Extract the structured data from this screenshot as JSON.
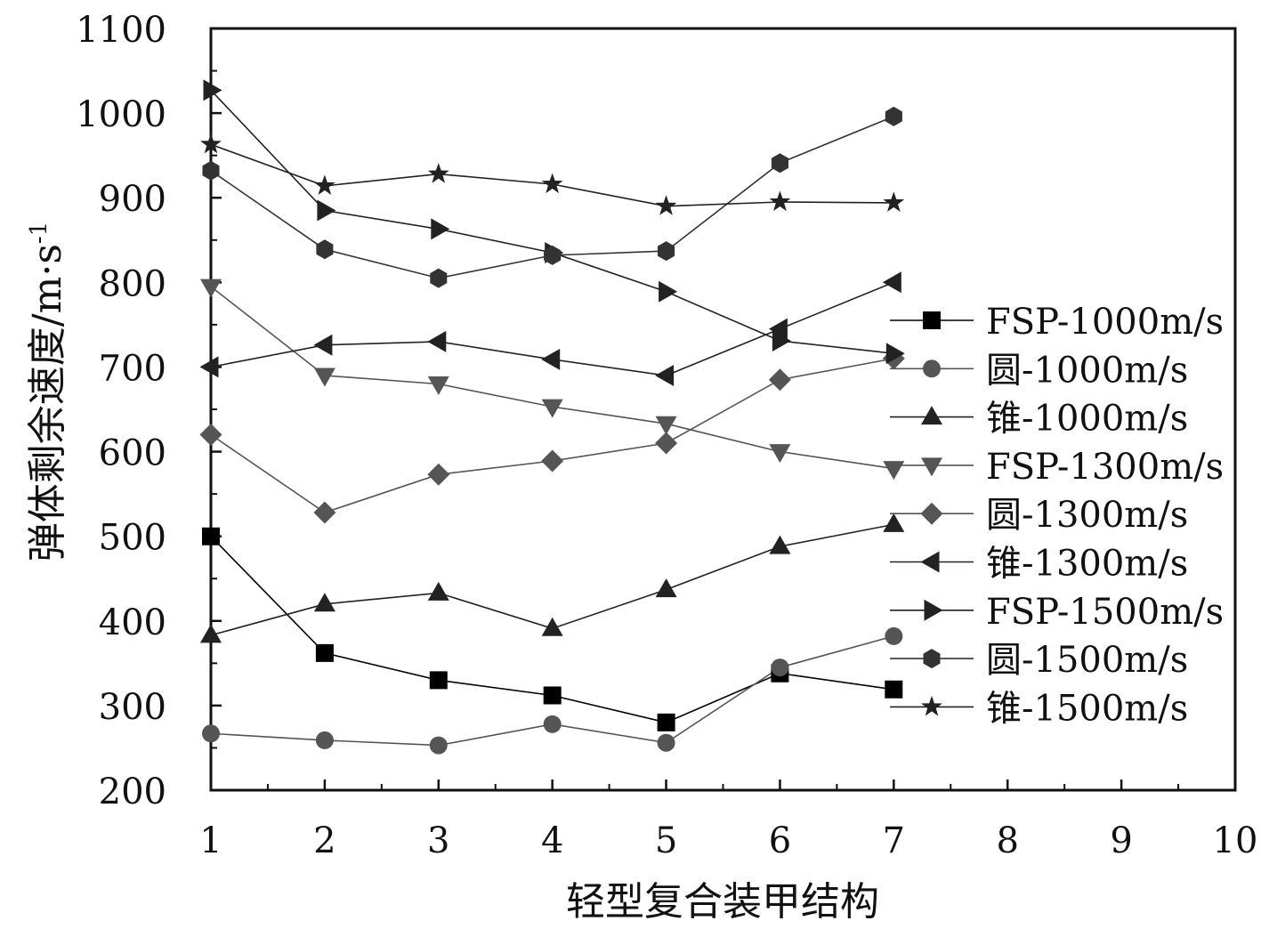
{
  "chart_data": {
    "type": "line",
    "title": "",
    "xlabel": "轻型复合装甲结构",
    "ylabel": "弹体剩余速度/m·s",
    "ylabel_superscript": "-1",
    "xlim": [
      1,
      10
    ],
    "ylim": [
      200,
      1100
    ],
    "xticks": [
      "1",
      "2",
      "3",
      "4",
      "5",
      "6",
      "7",
      "8",
      "9",
      "10"
    ],
    "yticks": [
      "200",
      "300",
      "400",
      "500",
      "600",
      "700",
      "800",
      "900",
      "1000",
      "1100"
    ],
    "grid": false,
    "legend_position": "right",
    "x": [
      1,
      2,
      3,
      4,
      5,
      6,
      7
    ],
    "series": [
      {
        "name": "FSP-1000m/s",
        "marker": "square",
        "color": "#000000",
        "values": [
          500,
          362,
          330,
          312,
          280,
          338,
          319
        ]
      },
      {
        "name": "圆-1000m/s",
        "marker": "circle",
        "color": "#555555",
        "values": [
          267,
          259,
          253,
          278,
          256,
          345,
          382
        ]
      },
      {
        "name": "锥-1000m/s",
        "marker": "triangle-up",
        "color": "#222222",
        "values": [
          383,
          420,
          433,
          391,
          437,
          488,
          514
        ]
      },
      {
        "name": "FSP-1300m/s",
        "marker": "triangle-down",
        "color": "#555555",
        "values": [
          795,
          690,
          680,
          653,
          633,
          600,
          580
        ]
      },
      {
        "name": "圆-1300m/s",
        "marker": "diamond",
        "color": "#555555",
        "values": [
          620,
          528,
          573,
          589,
          610,
          685,
          710
        ]
      },
      {
        "name": "锥-1300m/s",
        "marker": "triangle-left",
        "color": "#222222",
        "values": [
          700,
          726,
          730,
          709,
          690,
          745,
          800
        ]
      },
      {
        "name": "FSP-1500m/s",
        "marker": "triangle-right",
        "color": "#222222",
        "values": [
          1027,
          885,
          863,
          835,
          789,
          731,
          716
        ]
      },
      {
        "name": "圆-1500m/s",
        "marker": "hexagon",
        "color": "#333333",
        "values": [
          932,
          839,
          805,
          832,
          837,
          941,
          996
        ]
      },
      {
        "name": "锥-1500m/s",
        "marker": "star",
        "color": "#222222",
        "values": [
          963,
          914,
          928,
          916,
          890,
          895,
          894
        ]
      }
    ]
  }
}
